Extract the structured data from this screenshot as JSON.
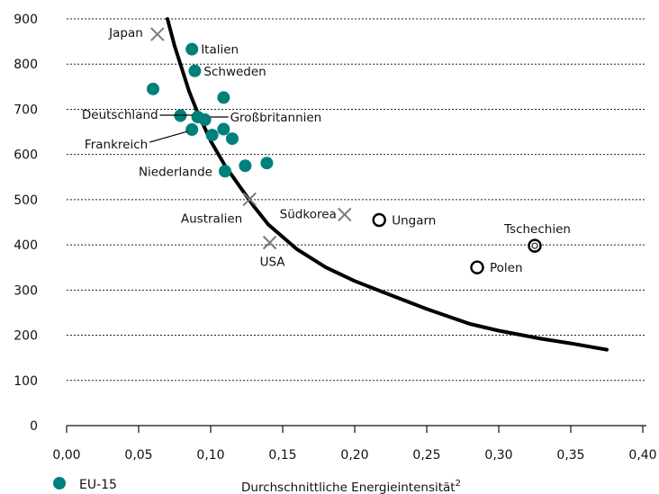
{
  "colors": {
    "eu15": "#00807a",
    "curve": "#000000",
    "cross": "#7a7a7a",
    "open": "#000000",
    "grid": "#222222"
  },
  "chart_data": {
    "type": "scatter",
    "xlabel": "Durchschnittliche Energieintensität",
    "xlabel_sup": "2",
    "ylabel": "",
    "xlim": [
      0,
      0.4
    ],
    "ylim": [
      0,
      900
    ],
    "x_ticks": [
      0,
      0.05,
      0.1,
      0.15,
      0.2,
      0.25,
      0.3,
      0.35,
      0.4
    ],
    "x_tick_labels": [
      "0,00",
      "0,05",
      "0,10",
      "0,15",
      "0,20",
      "0,25",
      "0,30",
      "0,35",
      "0,40"
    ],
    "y_ticks": [
      0,
      100,
      200,
      300,
      400,
      500,
      600,
      700,
      800,
      900
    ],
    "y_tick_labels": [
      "0",
      "100",
      "200",
      "300",
      "400",
      "500",
      "600",
      "700",
      "800",
      "900"
    ],
    "grid": "horizontal dashed",
    "legend": {
      "position": "bottom-left",
      "entries": [
        {
          "label": "EU-15",
          "marker": "filled circle"
        }
      ]
    },
    "curve": {
      "x": [
        0.07,
        0.075,
        0.08,
        0.085,
        0.09,
        0.095,
        0.1,
        0.11,
        0.12,
        0.13,
        0.14,
        0.16,
        0.18,
        0.2,
        0.22,
        0.25,
        0.28,
        0.3,
        0.33,
        0.35,
        0.375
      ],
      "y": [
        900,
        840,
        790,
        740,
        700,
        665,
        630,
        575,
        530,
        485,
        445,
        390,
        350,
        320,
        295,
        258,
        225,
        210,
        192,
        182,
        168
      ]
    },
    "series": [
      {
        "name": "EU-15",
        "marker": "filled-circle",
        "points": [
          {
            "x": 0.06,
            "y": 745,
            "label": ""
          },
          {
            "x": 0.087,
            "y": 833,
            "label": "Italien"
          },
          {
            "x": 0.089,
            "y": 785,
            "label": "Schweden"
          },
          {
            "x": 0.109,
            "y": 726,
            "label": ""
          },
          {
            "x": 0.079,
            "y": 686,
            "label": ""
          },
          {
            "x": 0.091,
            "y": 683,
            "label": "Deutschland"
          },
          {
            "x": 0.096,
            "y": 677,
            "label": "Großbritannien"
          },
          {
            "x": 0.087,
            "y": 655,
            "label": "Frankreich"
          },
          {
            "x": 0.101,
            "y": 643,
            "label": ""
          },
          {
            "x": 0.109,
            "y": 656,
            "label": ""
          },
          {
            "x": 0.115,
            "y": 635,
            "label": ""
          },
          {
            "x": 0.11,
            "y": 563,
            "label": "Niederlande"
          },
          {
            "x": 0.124,
            "y": 575,
            "label": ""
          },
          {
            "x": 0.139,
            "y": 581,
            "label": ""
          }
        ]
      },
      {
        "name": "",
        "marker": "cross",
        "points": [
          {
            "x": 0.063,
            "y": 866,
            "label": "Japan"
          },
          {
            "x": 0.127,
            "y": 501,
            "label": "Australien"
          },
          {
            "x": 0.141,
            "y": 405,
            "label": "USA"
          },
          {
            "x": 0.193,
            "y": 467,
            "label": "Südkorea"
          }
        ]
      },
      {
        "name": "",
        "marker": "open-circle",
        "points": [
          {
            "x": 0.217,
            "y": 455,
            "label": "Ungarn"
          },
          {
            "x": 0.285,
            "y": 350,
            "label": "Polen"
          },
          {
            "x": 0.325,
            "y": 398,
            "label": "Tschechien"
          }
        ]
      }
    ],
    "annotations": [
      "Japan",
      "Italien",
      "Schweden",
      "Deutschland",
      "Großbritannien",
      "Frankreich",
      "Niederlande",
      "Australien",
      "Südkorea",
      "Ungarn",
      "USA",
      "Tschechien",
      "Polen"
    ]
  }
}
